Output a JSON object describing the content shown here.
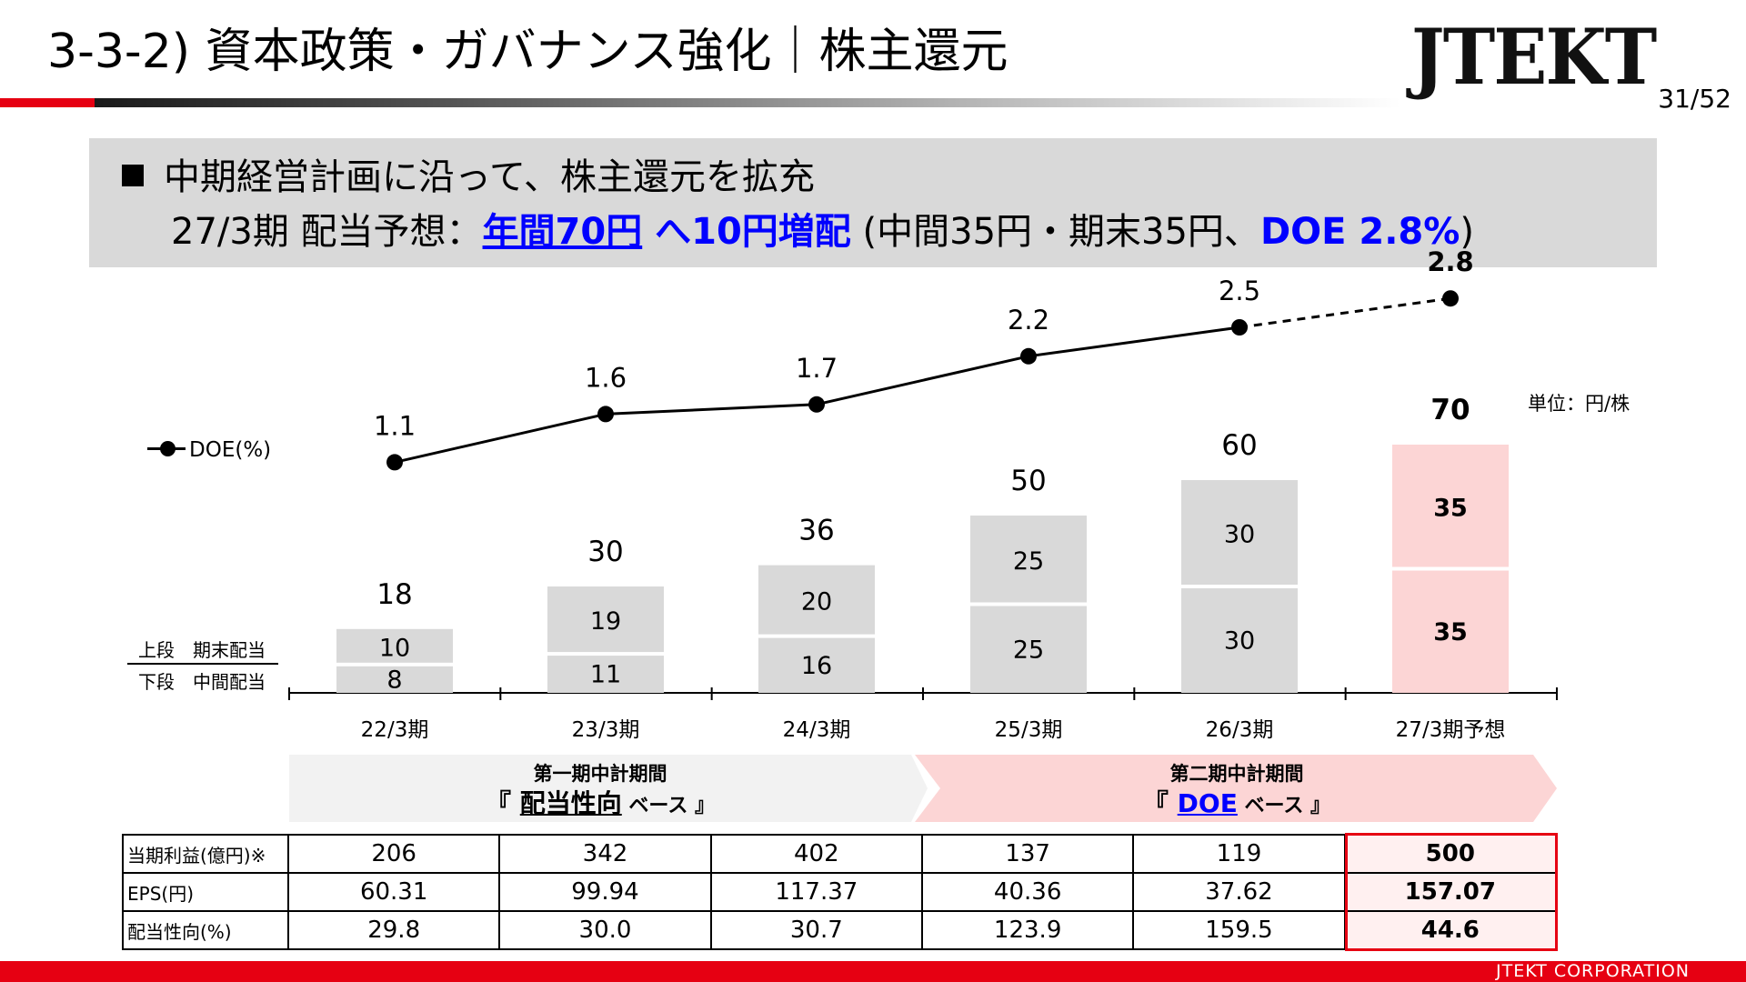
{
  "header": {
    "title": "3-3-2) 資本政策・ガバナンス強化｜株主還元",
    "logo": "JTEKT",
    "page": "31/52"
  },
  "headline": {
    "line1": "中期経営計画に沿って、株主還元を拡充",
    "line2_prefix": "27/3期 配当予想：",
    "line2_annual": "年間70円",
    "line2_increase": " へ10円増配",
    "line2_detail": " (中間35円・期末35円、",
    "line2_doe": "DOE 2.8%",
    "line2_close": ")"
  },
  "chart_data": {
    "type": "bar",
    "categories": [
      "22/3期",
      "23/3期",
      "24/3期",
      "25/3期",
      "26/3期",
      "27/3期予想"
    ],
    "unit_label": "単位：円/株",
    "series": [
      {
        "name": "中間配当",
        "values": [
          8,
          11,
          16,
          25,
          30,
          35
        ]
      },
      {
        "name": "期末配当",
        "values": [
          10,
          19,
          20,
          25,
          30,
          35
        ]
      }
    ],
    "totals": [
      18,
      30,
      36,
      50,
      60,
      70
    ],
    "line_series": {
      "name": "DOE(%)",
      "values": [
        1.1,
        1.6,
        1.7,
        2.2,
        2.5,
        2.8
      ],
      "forecast_from_index": 4
    },
    "key_upper": "上段　期末配当",
    "key_lower": "下段　中間配当",
    "colors": {
      "bar": "#d9d9d9",
      "forecast_bar": "#fcd5d5",
      "line": "#000000",
      "highlight": "#e60012"
    }
  },
  "periods": [
    {
      "title": "第一期中計期間",
      "prefix": "『 ",
      "base": "配当性向",
      "suffix": " ベース 』",
      "color": "#f2f2f2"
    },
    {
      "title": "第二期中計期間",
      "prefix": "『 ",
      "base": "DOE",
      "suffix": " ベース 』",
      "color": "#fcd5d5"
    }
  ],
  "table": {
    "rows": [
      {
        "label": "当期利益(億円)※",
        "values": [
          "206",
          "342",
          "402",
          "137",
          "119",
          "500"
        ]
      },
      {
        "label": "EPS(円)",
        "values": [
          "60.31",
          "99.94",
          "117.37",
          "40.36",
          "37.62",
          "157.07"
        ]
      },
      {
        "label": "配当性向(%)",
        "values": [
          "29.8",
          "30.0",
          "30.7",
          "123.9",
          "159.5",
          "44.6"
        ]
      }
    ]
  },
  "footer": {
    "company": "JTEKT  CORPORATION"
  }
}
